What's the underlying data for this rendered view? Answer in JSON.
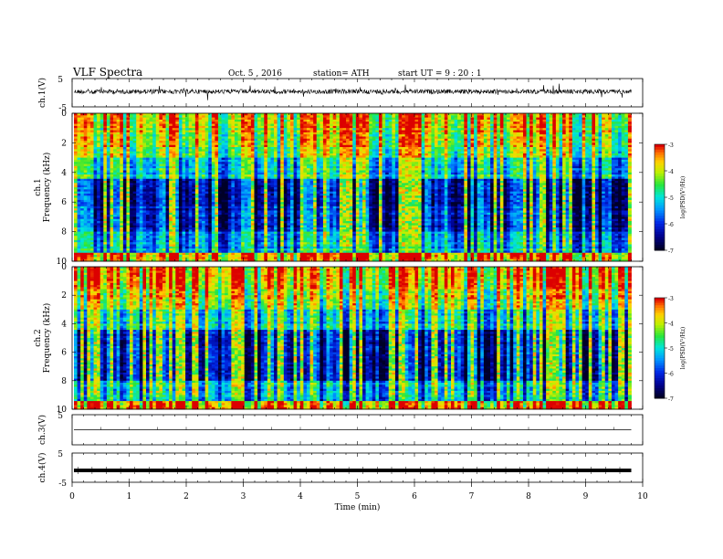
{
  "header": {
    "title": "VLF  Spectra",
    "date": "Oct. 5  , 2016",
    "station": "station= ATH",
    "start": "start  UT  =   9  : 20 : 1"
  },
  "chart_data": [
    {
      "type": "line",
      "name": "ch1-waveform",
      "ylabel": "ch.1(V)",
      "ylim": [
        -5,
        5
      ],
      "yticks": [
        "5",
        "-5"
      ],
      "baseline_v": 0.4,
      "amplitude_v": 1.2,
      "xlim": [
        0,
        10
      ],
      "data_end_min": 9.8
    },
    {
      "type": "heatmap",
      "name": "ch1-spectrogram",
      "ylabel": "ch.1\nFrequency  (kHz)",
      "ylim": [
        0,
        10
      ],
      "yticks": [
        "0",
        "2",
        "4",
        "6",
        "8",
        "10"
      ],
      "xlim": [
        0,
        10
      ],
      "data_end_min": 9.8,
      "colorbar_label": "log(PSD(V²/Hz)",
      "colorbar_ticks": [
        "-3",
        "-4",
        "-5",
        "-6",
        "-7"
      ],
      "colorbar_range": [
        -7,
        -3
      ]
    },
    {
      "type": "heatmap",
      "name": "ch2-spectrogram",
      "ylabel": "ch.2\nFrequency  (kHz)",
      "ylim": [
        0,
        10
      ],
      "yticks": [
        "0",
        "2",
        "4",
        "6",
        "8",
        "10"
      ],
      "xlim": [
        0,
        10
      ],
      "data_end_min": 9.8,
      "colorbar_label": "log(PSD(V²/Hz)",
      "colorbar_ticks": [
        "-3",
        "-4",
        "-5",
        "-6",
        "-7"
      ],
      "colorbar_range": [
        -7,
        -3
      ]
    },
    {
      "type": "line",
      "name": "ch3-waveform",
      "ylabel": "ch.3(V)",
      "ylim": [
        -5,
        5
      ],
      "yticks": [
        "5"
      ],
      "baseline_v": 0,
      "xlim": [
        0,
        10
      ],
      "data_end_min": 9.8
    },
    {
      "type": "line",
      "name": "ch4-waveform",
      "ylabel": "ch.4(V)",
      "ylim": [
        -5,
        5
      ],
      "yticks": [
        "5",
        "-5"
      ],
      "baseline_v": 0,
      "xlim": [
        0,
        10
      ],
      "data_end_min": 9.8
    }
  ],
  "xaxis": {
    "label": "Time  (min)",
    "ticks": [
      "0",
      "1",
      "2",
      "3",
      "4",
      "5",
      "6",
      "7",
      "8",
      "9",
      "10"
    ]
  }
}
